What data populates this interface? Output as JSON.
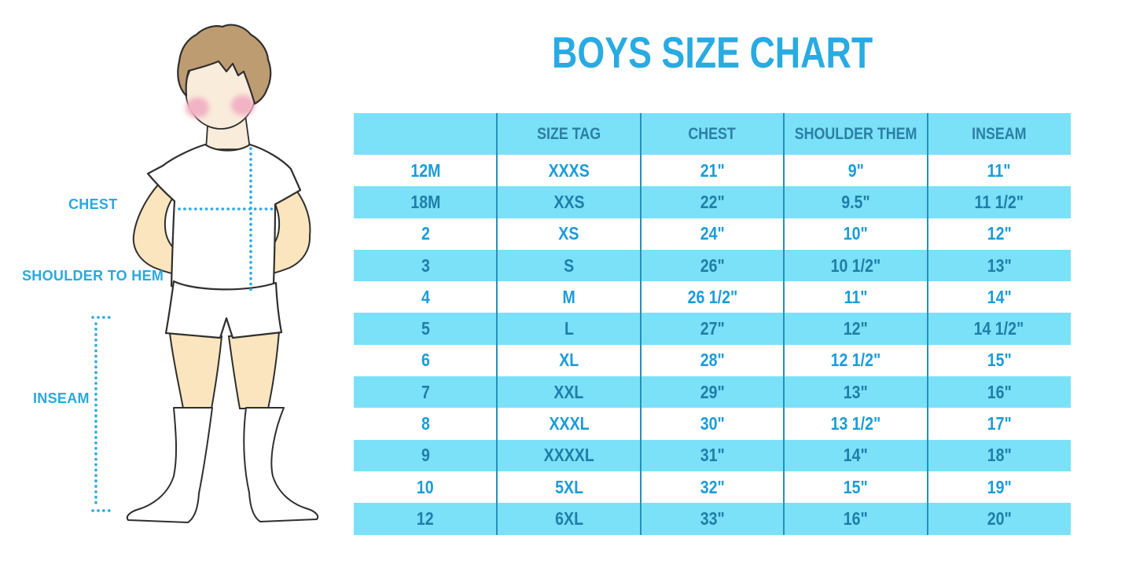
{
  "title": "BOYS SIZE CHART",
  "figure": {
    "description": "illustration of a boy in white t-shirt, shorts and knee socks with dotted measurement guides",
    "labels": {
      "chest": "CHEST",
      "shoulder_to_hem": "SHOULDER TO HEM",
      "inseam": "INSEAM"
    }
  },
  "colors": {
    "accent_blue": "#29ABE2",
    "band_blue": "#7AE1F8",
    "divider_blue": "#2490BD",
    "row_text_on_white": "#1B9CD8",
    "row_text_on_blue": "#1E7FA9",
    "header_text": "#2B7FA4",
    "skin": "#FAE5BE",
    "face_skin": "#F9ECDB",
    "hair_brown": "#BE9C72",
    "blush_pink": "#F2B3C4",
    "outline": "#2F2F2F"
  },
  "chart_data": {
    "type": "table",
    "title": "BOYS SIZE CHART",
    "columns": [
      "",
      "SIZE TAG",
      "CHEST",
      "SHOULDER THEM",
      "INSEAM"
    ],
    "rows": [
      [
        "12M",
        "XXXS",
        "21\"",
        "9\"",
        "11\""
      ],
      [
        "18M",
        "XXS",
        "22\"",
        "9.5\"",
        "11 1/2\""
      ],
      [
        "2",
        "XS",
        "24\"",
        "10\"",
        "12\""
      ],
      [
        "3",
        "S",
        "26\"",
        "10 1/2\"",
        "13\""
      ],
      [
        "4",
        "M",
        "26 1/2\"",
        "11\"",
        "14\""
      ],
      [
        "5",
        "L",
        "27\"",
        "12\"",
        "14 1/2\""
      ],
      [
        "6",
        "XL",
        "28\"",
        "12 1/2\"",
        "15\""
      ],
      [
        "7",
        "XXL",
        "29\"",
        "13\"",
        "16\""
      ],
      [
        "8",
        "XXXL",
        "30\"",
        "13 1/2\"",
        "17\""
      ],
      [
        "9",
        "XXXXL",
        "31\"",
        "14\"",
        "18\""
      ],
      [
        "10",
        "5XL",
        "32\"",
        "15\"",
        "19\""
      ],
      [
        "12",
        "6XL",
        "33\"",
        "16\"",
        "20\""
      ]
    ],
    "layout": {
      "striping": "header and alternate rows light blue, others white",
      "grid": "vertical column dividers only"
    }
  }
}
